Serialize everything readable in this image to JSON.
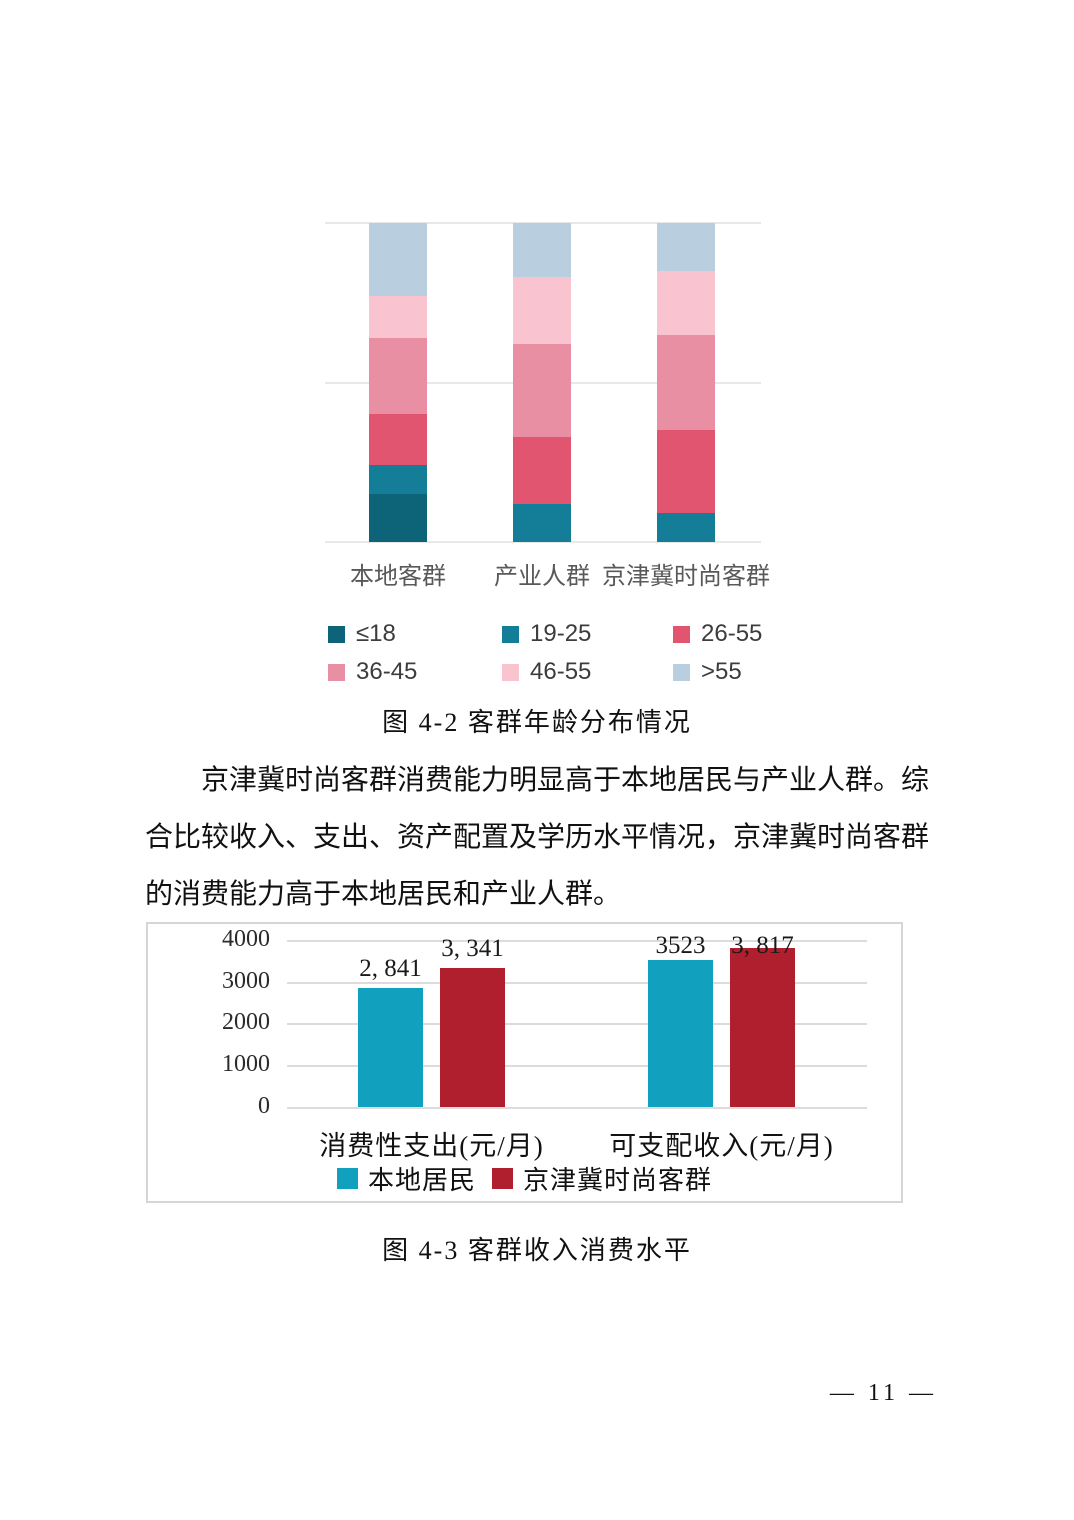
{
  "page": {
    "number_text": "— 11 —"
  },
  "figure42": {
    "caption": "图 4-2 客群年龄分布情况"
  },
  "paragraph": "京津冀时尚客群消费能力明显高于本地居民与产业人群。综合比较收入、支出、资产配置及学历水平情况，京津冀时尚客群的消费能力高于本地居民和产业人群。",
  "figure43": {
    "caption": "图 4-3 客群收入消费水平"
  },
  "chart_data": [
    {
      "type": "bar",
      "subtype": "stacked-percent",
      "title": "客群年龄分布情况",
      "categories": [
        "本地客群",
        "产业人群",
        "京津冀时尚客群"
      ],
      "series": [
        {
          "name": "≤18",
          "color": "#0d6377",
          "values": [
            15,
            0,
            0
          ]
        },
        {
          "name": "19-25",
          "color": "#147e98",
          "values": [
            9,
            12,
            9
          ]
        },
        {
          "name": "26-55",
          "color": "#e15570",
          "values": [
            16,
            21,
            26
          ]
        },
        {
          "name": "36-45",
          "color": "#e98fa3",
          "values": [
            24,
            29,
            30
          ]
        },
        {
          "name": "46-55",
          "color": "#f9c4d0",
          "values": [
            13,
            21,
            20
          ]
        },
        {
          "name": ">55",
          "color": "#b9cfdf",
          "values": [
            23,
            17,
            15
          ]
        }
      ],
      "ylim": [
        0,
        100
      ],
      "gridlines": [
        0,
        50,
        100
      ],
      "grid": true,
      "legend_position": "bottom",
      "xlabel": "",
      "ylabel": ""
    },
    {
      "type": "bar",
      "subtype": "grouped",
      "title": "客群收入消费水平",
      "categories": [
        "消费性支出(元/月)",
        "可支配收入(元/月)"
      ],
      "series": [
        {
          "name": "本地居民",
          "color": "#12a0bf",
          "values": [
            2841,
            3523
          ],
          "labels": [
            "2, 841",
            "3523"
          ]
        },
        {
          "name": "京津冀时尚客群",
          "color": "#b01f2e",
          "values": [
            3341,
            3817
          ],
          "labels": [
            "3, 341",
            "3, 817"
          ]
        }
      ],
      "yticks": [
        0,
        1000,
        2000,
        3000,
        4000
      ],
      "ylim": [
        0,
        4000
      ],
      "grid": true,
      "legend_position": "bottom",
      "xlabel": "",
      "ylabel": ""
    }
  ]
}
